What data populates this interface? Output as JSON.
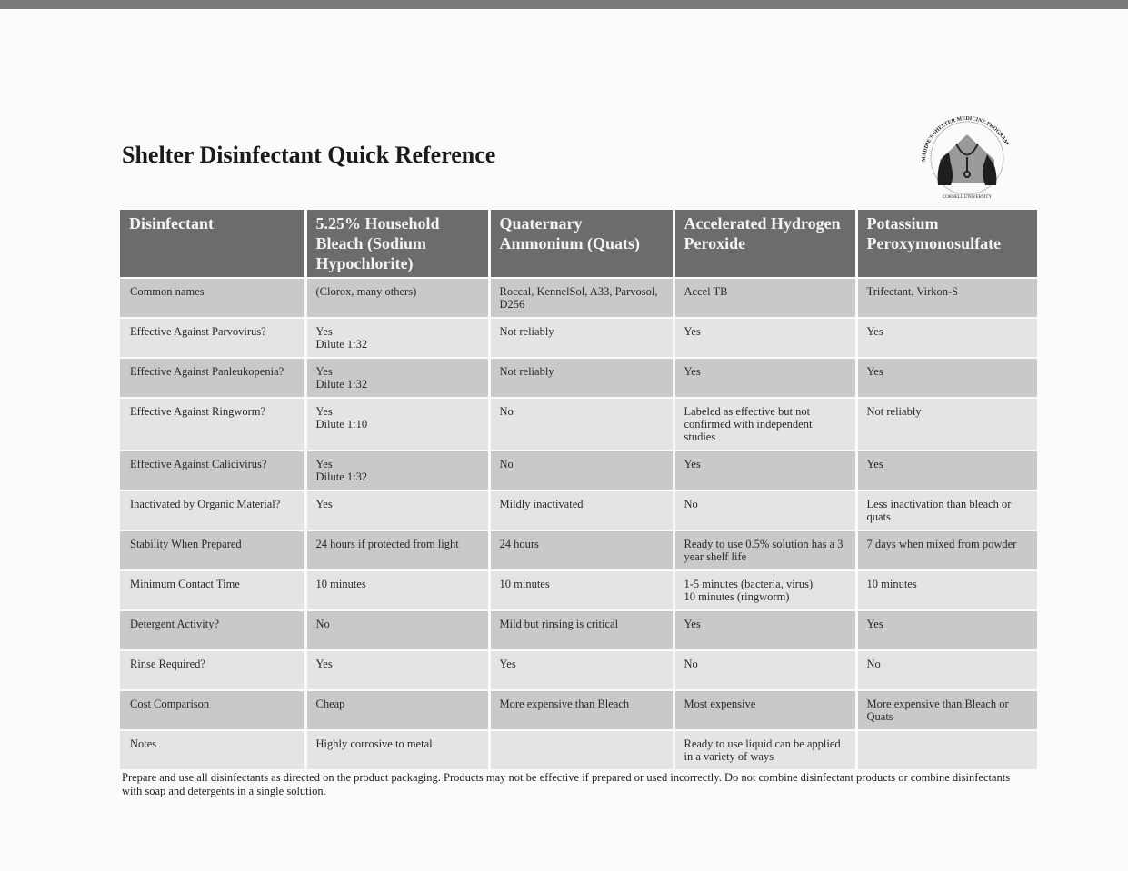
{
  "title": "Shelter Disinfectant Quick Reference",
  "logo": {
    "text": "Maddie's Shelter Medicine Program, Cornell University"
  },
  "table": {
    "headers": [
      "Disinfectant",
      "5.25% Household Bleach (Sodium Hypochlorite)",
      "Quaternary Ammonium (Quats)",
      "Accelerated Hydrogen Peroxide",
      "Potassium Peroxymonosulfate"
    ],
    "rows": [
      [
        "Common names",
        "(Clorox, many others)",
        "Roccal, KennelSol, A33, Parvosol, D256",
        "Accel TB",
        "Trifectant, Virkon-S"
      ],
      [
        "Effective Against Parvovirus?",
        "Yes\nDilute 1:32",
        "Not reliably",
        "Yes",
        "Yes"
      ],
      [
        "Effective Against Panleukopenia?",
        "Yes\nDilute 1:32",
        "Not reliably",
        "Yes",
        "Yes"
      ],
      [
        "Effective Against Ringworm?",
        "Yes\nDilute 1:10",
        "No",
        "Labeled as effective but not confirmed with independent studies",
        "Not reliably"
      ],
      [
        "Effective Against Calicivirus?",
        "Yes\nDilute 1:32",
        "No",
        "Yes",
        "Yes"
      ],
      [
        "Inactivated by Organic Material?",
        "Yes",
        "Mildly inactivated",
        "No",
        "Less inactivation than bleach or quats"
      ],
      [
        "Stability When Prepared",
        "24 hours if protected from light",
        "24 hours",
        "Ready to use 0.5% solution has a 3 year shelf life",
        "7 days when mixed from powder"
      ],
      [
        "Minimum Contact Time",
        "10 minutes",
        "10 minutes",
        "1-5 minutes (bacteria, virus)\n10 minutes (ringworm)",
        "10 minutes"
      ],
      [
        "Detergent Activity?",
        "No",
        "Mild but rinsing is critical",
        "Yes",
        "Yes"
      ],
      [
        "Rinse Required?",
        "Yes",
        "Yes",
        "No",
        "No"
      ],
      [
        "Cost Comparison",
        "Cheap",
        "More expensive than Bleach",
        "Most expensive",
        "More expensive than Bleach or Quats"
      ],
      [
        "Notes",
        "Highly corrosive to metal",
        "",
        "Ready to use liquid can be applied in a variety of ways",
        ""
      ]
    ]
  },
  "footer": "Prepare and use all disinfectants as directed on the product packaging. Products may not be effective if prepared or used incorrectly. Do not combine disinfectant products or combine disinfectants with soap and detergents in a single solution."
}
